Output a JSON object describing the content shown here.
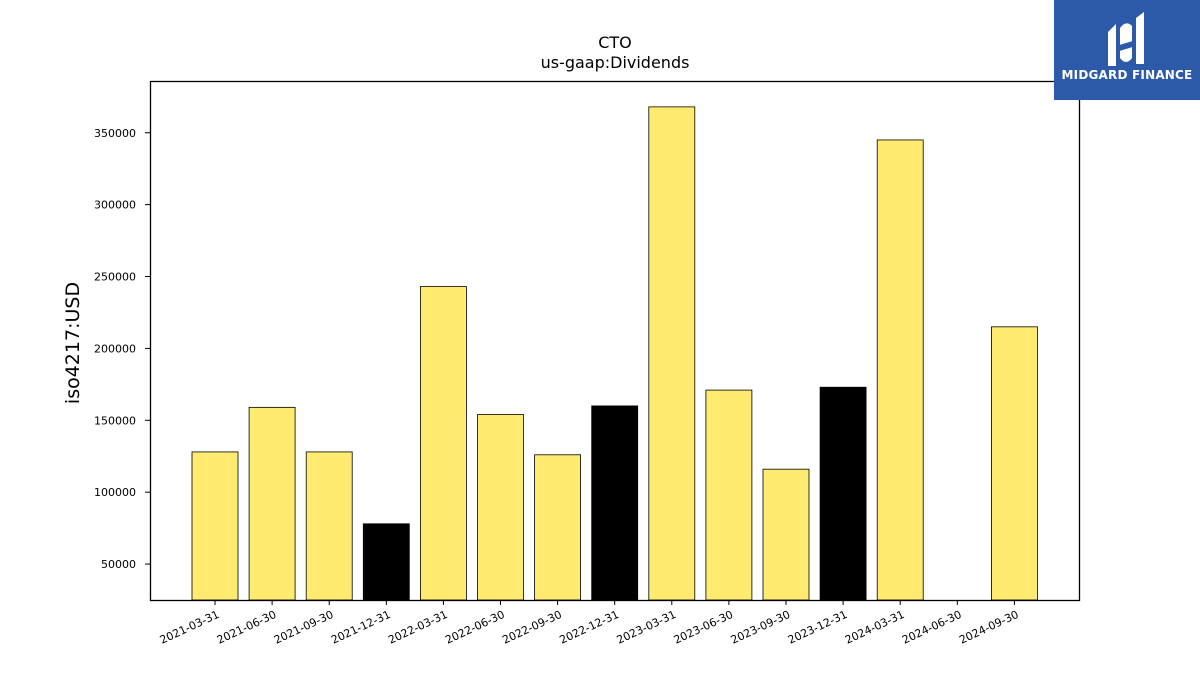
{
  "logo": {
    "text": "MIDGARD FINANCE",
    "icon": "midgard-logo-icon",
    "background_color": "#2d5aa8"
  },
  "chart_data": {
    "type": "bar",
    "title": "CTO",
    "subtitle": "us-gaap:Dividends",
    "xlabel": "",
    "ylabel": "iso4217:USD",
    "categories": [
      "2021-03-31",
      "2021-06-30",
      "2021-09-30",
      "2021-12-31",
      "2022-03-31",
      "2022-06-30",
      "2022-09-30",
      "2022-12-31",
      "2023-03-31",
      "2023-06-30",
      "2023-09-30",
      "2023-12-31",
      "2024-03-31",
      "2024-06-30",
      "2024-09-30"
    ],
    "values": [
      128000,
      159000,
      128000,
      78000,
      243000,
      154000,
      126000,
      160000,
      368000,
      171000,
      116000,
      173000,
      345000,
      null,
      215000
    ],
    "bar_colors": [
      "#ffeb70",
      "#ffeb70",
      "#ffeb70",
      "#000000",
      "#ffeb70",
      "#ffeb70",
      "#ffeb70",
      "#000000",
      "#ffeb70",
      "#ffeb70",
      "#ffeb70",
      "#000000",
      "#ffeb70",
      "#ffeb70",
      "#ffeb70"
    ],
    "bar_edge_color": "#000000",
    "ylim": [
      25000,
      386000
    ],
    "yticks": [
      50000,
      100000,
      150000,
      200000,
      250000,
      300000,
      350000
    ],
    "grid": false,
    "legend": "none"
  }
}
